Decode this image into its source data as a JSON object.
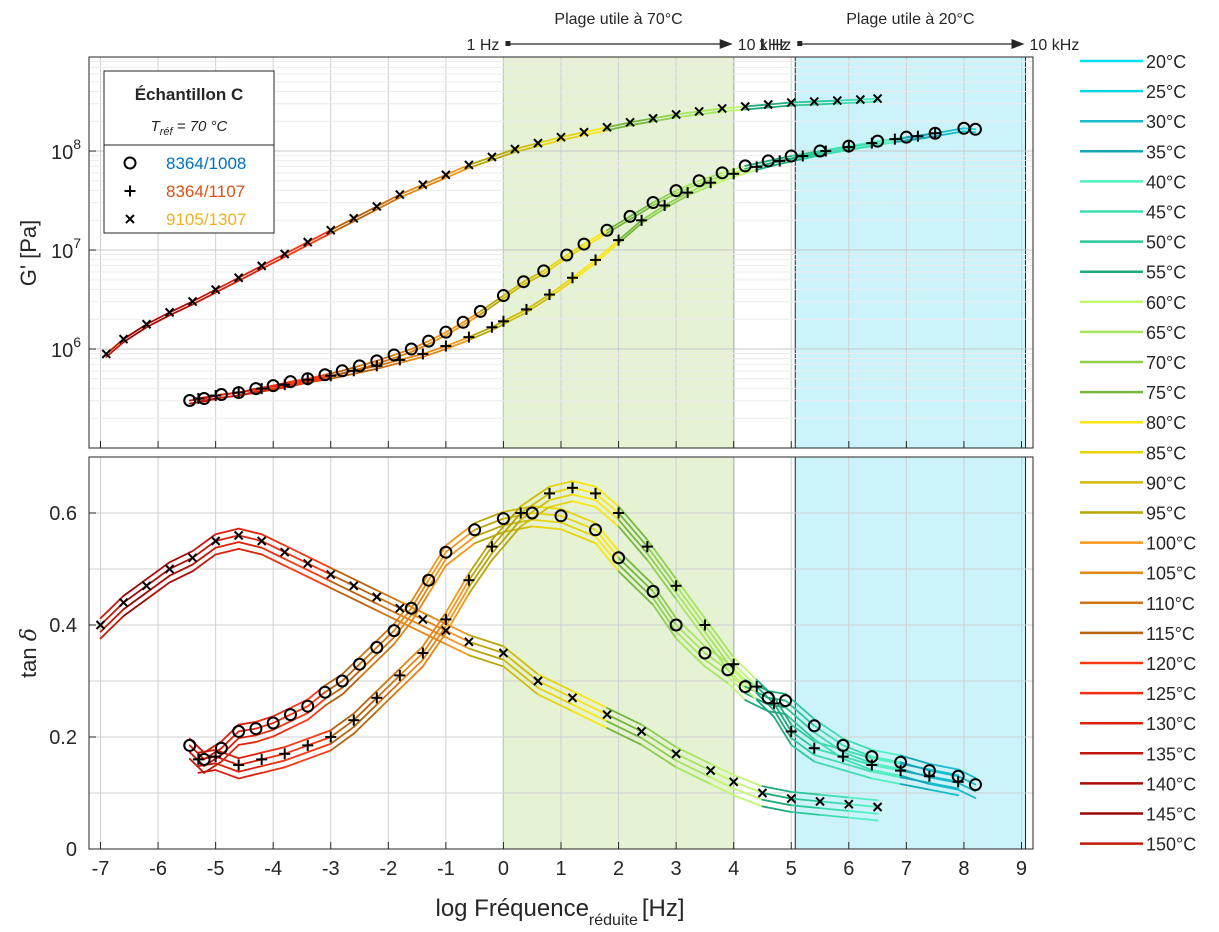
{
  "chart_data": {
    "type": "scatter",
    "xlabel": "log Fréquence",
    "xlabel_sub": "réduite",
    "xlabel_unit": "[Hz]",
    "xlim": [
      -7.2,
      9.2
    ],
    "xticks": [
      "-7",
      "-6",
      "-5",
      "-4",
      "-3",
      "-2",
      "-1",
      "0",
      "1",
      "2",
      "3",
      "4",
      "5",
      "6",
      "7",
      "8",
      "9"
    ],
    "grid": true,
    "legend_position": "right",
    "top_panel": {
      "ylabel": "G' [Pa]",
      "yscale": "log",
      "ylim_exp": [
        5.0,
        8.95
      ],
      "yticks": [
        {
          "base": "10",
          "exp": "6"
        },
        {
          "base": "10",
          "exp": "7"
        },
        {
          "base": "10",
          "exp": "8"
        }
      ]
    },
    "bottom_panel": {
      "ylabel": "tan",
      "ylabel_symbol": "δ",
      "ylim": [
        0,
        0.7
      ],
      "yticks": [
        "0",
        "0.2",
        "0.4",
        "0.6"
      ]
    },
    "bands": [
      {
        "title": "Plage utile à 70°C",
        "from_label": "1 Hz",
        "to_label": "10 kHz",
        "x0": 0,
        "x1": 4,
        "color": "#e5f2d4"
      },
      {
        "title": "Plage utile à 20°C",
        "from_label": "1 Hz",
        "to_label": "10 kHz",
        "x0": 5.07,
        "x1": 9.07,
        "color": "#ccf3fa"
      }
    ],
    "sample_box": {
      "title": "Échantillon C",
      "tref_prefix": "T",
      "tref_sub": "réf",
      "tref_suffix": " = 70 °C",
      "series": [
        {
          "marker": "o",
          "name": "8364/1008",
          "color": "#0072bd"
        },
        {
          "marker": "+",
          "name": "8364/1107",
          "color": "#d95319"
        },
        {
          "marker": "x",
          "name": "9105/1307",
          "color": "#edb120"
        }
      ]
    },
    "temp_legend": [
      {
        "label": "20°C",
        "color": "#00e0f0"
      },
      {
        "label": "25°C",
        "color": "#0fd2e4"
      },
      {
        "label": "30°C",
        "color": "#18bccc"
      },
      {
        "label": "35°C",
        "color": "#17a6b8"
      },
      {
        "label": "40°C",
        "color": "#55f0c2"
      },
      {
        "label": "45°C",
        "color": "#3fdcb0"
      },
      {
        "label": "50°C",
        "color": "#2bc898"
      },
      {
        "label": "55°C",
        "color": "#1eaa7e"
      },
      {
        "label": "60°C",
        "color": "#c0f870"
      },
      {
        "label": "65°C",
        "color": "#a6e65e"
      },
      {
        "label": "70°C",
        "color": "#8ed04e"
      },
      {
        "label": "75°C",
        "color": "#74b83c"
      },
      {
        "label": "80°C",
        "color": "#fbe60f"
      },
      {
        "label": "85°C",
        "color": "#e8d40a"
      },
      {
        "label": "90°C",
        "color": "#cfbc08"
      },
      {
        "label": "95°C",
        "color": "#b7a606"
      },
      {
        "label": "100°C",
        "color": "#f3981a"
      },
      {
        "label": "105°C",
        "color": "#e28614"
      },
      {
        "label": "110°C",
        "color": "#cf7410"
      },
      {
        "label": "115°C",
        "color": "#b9620c"
      },
      {
        "label": "120°C",
        "color": "#ff3814"
      },
      {
        "label": "125°C",
        "color": "#ef2c10"
      },
      {
        "label": "130°C",
        "color": "#db200c"
      },
      {
        "label": "135°C",
        "color": "#c4160a"
      },
      {
        "label": "140°C",
        "color": "#ac0c08"
      },
      {
        "label": "145°C",
        "color": "#980604"
      },
      {
        "label": "150°C",
        "color": "#c21a06"
      }
    ],
    "series": [
      {
        "name": "8364/1008",
        "marker": "o",
        "gprime_log10": [
          [
            -5.45,
            5.48
          ],
          [
            -5.2,
            5.5
          ],
          [
            -4.9,
            5.54
          ],
          [
            -4.6,
            5.56
          ],
          [
            -4.3,
            5.6
          ],
          [
            -4.0,
            5.63
          ],
          [
            -3.7,
            5.67
          ],
          [
            -3.4,
            5.7
          ],
          [
            -3.1,
            5.74
          ],
          [
            -2.8,
            5.78
          ],
          [
            -2.5,
            5.83
          ],
          [
            -2.2,
            5.88
          ],
          [
            -1.9,
            5.94
          ],
          [
            -1.6,
            6.0
          ],
          [
            -1.3,
            6.08
          ],
          [
            -1.0,
            6.17
          ],
          [
            -0.7,
            6.27
          ],
          [
            -0.4,
            6.38
          ],
          [
            0.0,
            6.54
          ],
          [
            0.35,
            6.68
          ],
          [
            0.7,
            6.79
          ],
          [
            1.1,
            6.95
          ],
          [
            1.4,
            7.06
          ],
          [
            1.8,
            7.2
          ],
          [
            2.2,
            7.34
          ],
          [
            2.6,
            7.48
          ],
          [
            3.0,
            7.6
          ],
          [
            3.4,
            7.7
          ],
          [
            3.8,
            7.78
          ],
          [
            4.2,
            7.85
          ],
          [
            4.6,
            7.9
          ],
          [
            5.0,
            7.95
          ],
          [
            5.5,
            8.0
          ],
          [
            6.0,
            8.05
          ],
          [
            6.5,
            8.1
          ],
          [
            7.0,
            8.14
          ],
          [
            7.5,
            8.18
          ],
          [
            8.0,
            8.23
          ],
          [
            8.2,
            8.22
          ]
        ],
        "tand": [
          [
            -5.45,
            0.185
          ],
          [
            -5.2,
            0.16
          ],
          [
            -4.9,
            0.18
          ],
          [
            -4.6,
            0.21
          ],
          [
            -4.3,
            0.215
          ],
          [
            -4.0,
            0.225
          ],
          [
            -3.7,
            0.24
          ],
          [
            -3.4,
            0.255
          ],
          [
            -3.1,
            0.28
          ],
          [
            -2.8,
            0.3
          ],
          [
            -2.5,
            0.33
          ],
          [
            -2.2,
            0.36
          ],
          [
            -1.9,
            0.39
          ],
          [
            -1.6,
            0.43
          ],
          [
            -1.3,
            0.48
          ],
          [
            -1.0,
            0.53
          ],
          [
            -0.5,
            0.57
          ],
          [
            0.0,
            0.59
          ],
          [
            0.5,
            0.6
          ],
          [
            1.0,
            0.595
          ],
          [
            1.6,
            0.57
          ],
          [
            2.0,
            0.52
          ],
          [
            2.6,
            0.46
          ],
          [
            3.0,
            0.4
          ],
          [
            3.5,
            0.35
          ],
          [
            3.9,
            0.32
          ],
          [
            4.2,
            0.29
          ],
          [
            4.6,
            0.27
          ],
          [
            4.9,
            0.265
          ],
          [
            5.4,
            0.22
          ],
          [
            5.9,
            0.185
          ],
          [
            6.4,
            0.165
          ],
          [
            6.9,
            0.155
          ],
          [
            7.4,
            0.14
          ],
          [
            7.9,
            0.13
          ],
          [
            8.2,
            0.115
          ]
        ]
      },
      {
        "name": "8364/1107",
        "marker": "+",
        "gprime_log10": [
          [
            -5.3,
            5.5
          ],
          [
            -5.0,
            5.53
          ],
          [
            -4.6,
            5.56
          ],
          [
            -4.2,
            5.6
          ],
          [
            -3.8,
            5.64
          ],
          [
            -3.4,
            5.69
          ],
          [
            -3.0,
            5.73
          ],
          [
            -2.6,
            5.78
          ],
          [
            -2.2,
            5.83
          ],
          [
            -1.8,
            5.89
          ],
          [
            -1.4,
            5.95
          ],
          [
            -1.0,
            6.03
          ],
          [
            -0.6,
            6.12
          ],
          [
            -0.2,
            6.22
          ],
          [
            0.0,
            6.28
          ],
          [
            0.4,
            6.4
          ],
          [
            0.8,
            6.55
          ],
          [
            1.2,
            6.72
          ],
          [
            1.6,
            6.9
          ],
          [
            2.0,
            7.1
          ],
          [
            2.4,
            7.3
          ],
          [
            2.8,
            7.45
          ],
          [
            3.2,
            7.58
          ],
          [
            3.6,
            7.68
          ],
          [
            4.0,
            7.77
          ],
          [
            4.4,
            7.84
          ],
          [
            4.8,
            7.9
          ],
          [
            5.2,
            7.95
          ],
          [
            5.6,
            8.0
          ],
          [
            6.0,
            8.04
          ],
          [
            6.4,
            8.08
          ],
          [
            6.8,
            8.12
          ],
          [
            7.2,
            8.15
          ],
          [
            7.5,
            8.18
          ]
        ],
        "tand": [
          [
            -5.3,
            0.16
          ],
          [
            -5.0,
            0.165
          ],
          [
            -4.6,
            0.15
          ],
          [
            -4.2,
            0.16
          ],
          [
            -3.8,
            0.17
          ],
          [
            -3.4,
            0.185
          ],
          [
            -3.0,
            0.2
          ],
          [
            -2.6,
            0.23
          ],
          [
            -2.2,
            0.27
          ],
          [
            -1.8,
            0.31
          ],
          [
            -1.4,
            0.35
          ],
          [
            -1.0,
            0.41
          ],
          [
            -0.6,
            0.48
          ],
          [
            -0.2,
            0.54
          ],
          [
            0.3,
            0.6
          ],
          [
            0.8,
            0.635
          ],
          [
            1.2,
            0.645
          ],
          [
            1.6,
            0.635
          ],
          [
            2.0,
            0.6
          ],
          [
            2.5,
            0.54
          ],
          [
            3.0,
            0.47
          ],
          [
            3.5,
            0.4
          ],
          [
            4.0,
            0.33
          ],
          [
            4.4,
            0.29
          ],
          [
            4.7,
            0.26
          ],
          [
            5.0,
            0.21
          ],
          [
            5.4,
            0.18
          ],
          [
            5.9,
            0.165
          ],
          [
            6.4,
            0.15
          ],
          [
            6.9,
            0.14
          ],
          [
            7.4,
            0.13
          ],
          [
            7.9,
            0.12
          ]
        ]
      },
      {
        "name": "9105/1307",
        "marker": "x",
        "gprime_log10": [
          [
            -6.9,
            5.95
          ],
          [
            -6.6,
            6.1
          ],
          [
            -6.2,
            6.25
          ],
          [
            -5.8,
            6.37
          ],
          [
            -5.4,
            6.48
          ],
          [
            -5.0,
            6.6
          ],
          [
            -4.6,
            6.72
          ],
          [
            -4.2,
            6.84
          ],
          [
            -3.8,
            6.96
          ],
          [
            -3.4,
            7.08
          ],
          [
            -3.0,
            7.2
          ],
          [
            -2.6,
            7.32
          ],
          [
            -2.2,
            7.44
          ],
          [
            -1.8,
            7.56
          ],
          [
            -1.4,
            7.66
          ],
          [
            -1.0,
            7.76
          ],
          [
            -0.6,
            7.86
          ],
          [
            -0.2,
            7.94
          ],
          [
            0.2,
            8.02
          ],
          [
            0.6,
            8.08
          ],
          [
            1.0,
            8.14
          ],
          [
            1.4,
            8.19
          ],
          [
            1.8,
            8.24
          ],
          [
            2.2,
            8.29
          ],
          [
            2.6,
            8.33
          ],
          [
            3.0,
            8.37
          ],
          [
            3.4,
            8.4
          ],
          [
            3.8,
            8.43
          ],
          [
            4.2,
            8.45
          ],
          [
            4.6,
            8.47
          ],
          [
            5.0,
            8.49
          ],
          [
            5.4,
            8.5
          ],
          [
            5.8,
            8.51
          ],
          [
            6.2,
            8.52
          ],
          [
            6.5,
            8.53
          ]
        ],
        "tand": [
          [
            -7.0,
            0.4
          ],
          [
            -6.6,
            0.44
          ],
          [
            -6.2,
            0.47
          ],
          [
            -5.8,
            0.5
          ],
          [
            -5.4,
            0.52
          ],
          [
            -5.0,
            0.55
          ],
          [
            -4.6,
            0.56
          ],
          [
            -4.2,
            0.55
          ],
          [
            -3.8,
            0.53
          ],
          [
            -3.4,
            0.51
          ],
          [
            -3.0,
            0.49
          ],
          [
            -2.6,
            0.47
          ],
          [
            -2.2,
            0.45
          ],
          [
            -1.8,
            0.43
          ],
          [
            -1.4,
            0.41
          ],
          [
            -1.0,
            0.39
          ],
          [
            -0.6,
            0.37
          ],
          [
            0.0,
            0.35
          ],
          [
            0.6,
            0.3
          ],
          [
            1.2,
            0.27
          ],
          [
            1.8,
            0.24
          ],
          [
            2.4,
            0.21
          ],
          [
            3.0,
            0.17
          ],
          [
            3.6,
            0.14
          ],
          [
            4.0,
            0.12
          ],
          [
            4.5,
            0.1
          ],
          [
            5.0,
            0.09
          ],
          [
            5.5,
            0.085
          ],
          [
            6.0,
            0.08
          ],
          [
            6.5,
            0.075
          ]
        ]
      }
    ]
  }
}
